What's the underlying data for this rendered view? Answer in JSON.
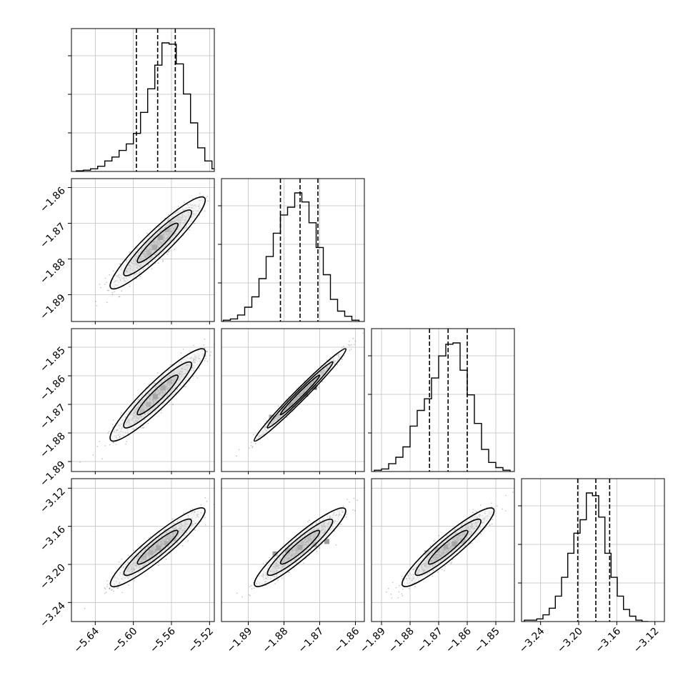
{
  "chart_data": {
    "type": "corner",
    "grid": true,
    "params": [
      {
        "range": [
          -5.665,
          -5.515
        ],
        "ticks": [
          -5.64,
          -5.6,
          -5.56,
          -5.52
        ],
        "tick_labels": [
          "−5.64",
          "−5.60",
          "−5.56",
          "−5.52"
        ],
        "quantiles": [
          -5.5968,
          -5.5745,
          -5.556
        ],
        "hist": {
          "edges_start": -5.66,
          "bin_width": 0.0075,
          "counts": [
            0.5,
            1,
            2,
            4,
            8,
            11,
            16,
            21,
            29,
            45,
            63,
            81,
            98,
            97,
            82,
            59,
            37,
            18,
            8,
            2,
            0
          ]
        }
      },
      {
        "range": [
          -1.8975,
          -1.8575
        ],
        "ticks": [
          -1.89,
          -1.88,
          -1.87,
          -1.86
        ],
        "tick_labels": [
          "−1.89",
          "−1.88",
          "−1.87",
          "−1.86"
        ],
        "quantiles": [
          -1.881,
          -1.8755,
          -1.8705
        ],
        "hist": {
          "edges_start": -1.897,
          "bin_width": 0.002,
          "counts": [
            1,
            2,
            5,
            11,
            19,
            33,
            50,
            68,
            82,
            88,
            99,
            92,
            76,
            57,
            36,
            17,
            8,
            4,
            1
          ]
        }
      },
      {
        "range": [
          -1.8935,
          -1.8435
        ],
        "ticks": [
          -1.89,
          -1.88,
          -1.87,
          -1.86,
          -1.85
        ],
        "tick_labels": [
          "−1.89",
          "−1.88",
          "−1.87",
          "−1.86",
          "−1.85"
        ],
        "quantiles": [
          -1.8732,
          -1.8667,
          -1.86
        ],
        "hist": {
          "edges_start": -1.8925,
          "bin_width": 0.0025,
          "counts": [
            1,
            2,
            6,
            11,
            19,
            35,
            47,
            56,
            72,
            89,
            98,
            99,
            78,
            59,
            37,
            17,
            7,
            3,
            1
          ]
        }
      },
      {
        "range": [
          -3.26,
          -3.11
        ],
        "ticks": [
          -3.24,
          -3.2,
          -3.16,
          -3.12
        ],
        "tick_labels": [
          "−3.24",
          "−3.20",
          "−3.16",
          "−3.12"
        ],
        "quantiles": [
          -3.201,
          -3.182,
          -3.1675
        ],
        "hist": {
          "edges_start": -3.257,
          "bin_width": 0.0065,
          "counts": [
            1,
            1,
            2,
            5,
            10,
            19,
            33,
            51,
            66,
            76,
            96,
            94,
            78,
            51,
            33,
            19,
            9,
            4,
            1,
            0
          ]
        }
      }
    ],
    "pairs": [
      {
        "row": 1,
        "col": 0,
        "density": [
          [
            -5.5715,
            -1.874,
            1.0
          ],
          [
            -5.5775,
            -1.8768,
            0.85
          ],
          [
            -5.5645,
            -1.8718,
            0.7
          ],
          [
            -5.5835,
            -1.8785,
            0.5
          ],
          [
            -5.56,
            -1.87,
            0.45
          ]
        ]
      },
      {
        "row": 2,
        "col": 0,
        "density": [
          [
            -5.577,
            -1.8672,
            1.0
          ],
          [
            -5.569,
            -1.8642,
            0.8
          ],
          [
            -5.584,
            -1.87,
            0.7
          ],
          [
            -5.562,
            -1.862,
            0.55
          ],
          [
            -5.5905,
            -1.8725,
            0.45
          ]
        ]
      },
      {
        "row": 2,
        "col": 1,
        "density": [
          [
            -1.878,
            -1.8702,
            0.95
          ],
          [
            -1.874,
            -1.8664,
            0.9
          ],
          [
            -1.8715,
            -1.864,
            0.75
          ],
          [
            -1.88,
            -1.8716,
            0.6
          ],
          [
            -1.8835,
            -1.8745,
            0.4
          ]
        ]
      },
      {
        "row": 3,
        "col": 0,
        "density": [
          [
            -5.5735,
            -3.183,
            1.0
          ],
          [
            -5.565,
            -3.178,
            0.75
          ],
          [
            -5.5815,
            -3.1875,
            0.6
          ],
          [
            -5.5575,
            -3.173,
            0.5
          ],
          [
            -5.5895,
            -3.193,
            0.35
          ]
        ]
      },
      {
        "row": 3,
        "col": 1,
        "density": [
          [
            -1.8755,
            -3.182,
            1.0
          ],
          [
            -1.879,
            -3.1855,
            0.75
          ],
          [
            -1.8715,
            -3.179,
            0.65
          ],
          [
            -1.8825,
            -3.189,
            0.45
          ],
          [
            -1.868,
            -3.176,
            0.45
          ]
        ]
      },
      {
        "row": 3,
        "col": 2,
        "density": [
          [
            -1.8645,
            -3.1785,
            1.0
          ],
          [
            -1.8675,
            -3.1815,
            0.85
          ],
          [
            -1.8705,
            -3.1845,
            0.65
          ],
          [
            -1.8615,
            -3.176,
            0.6
          ],
          [
            -1.874,
            -3.188,
            0.35
          ]
        ]
      }
    ]
  }
}
